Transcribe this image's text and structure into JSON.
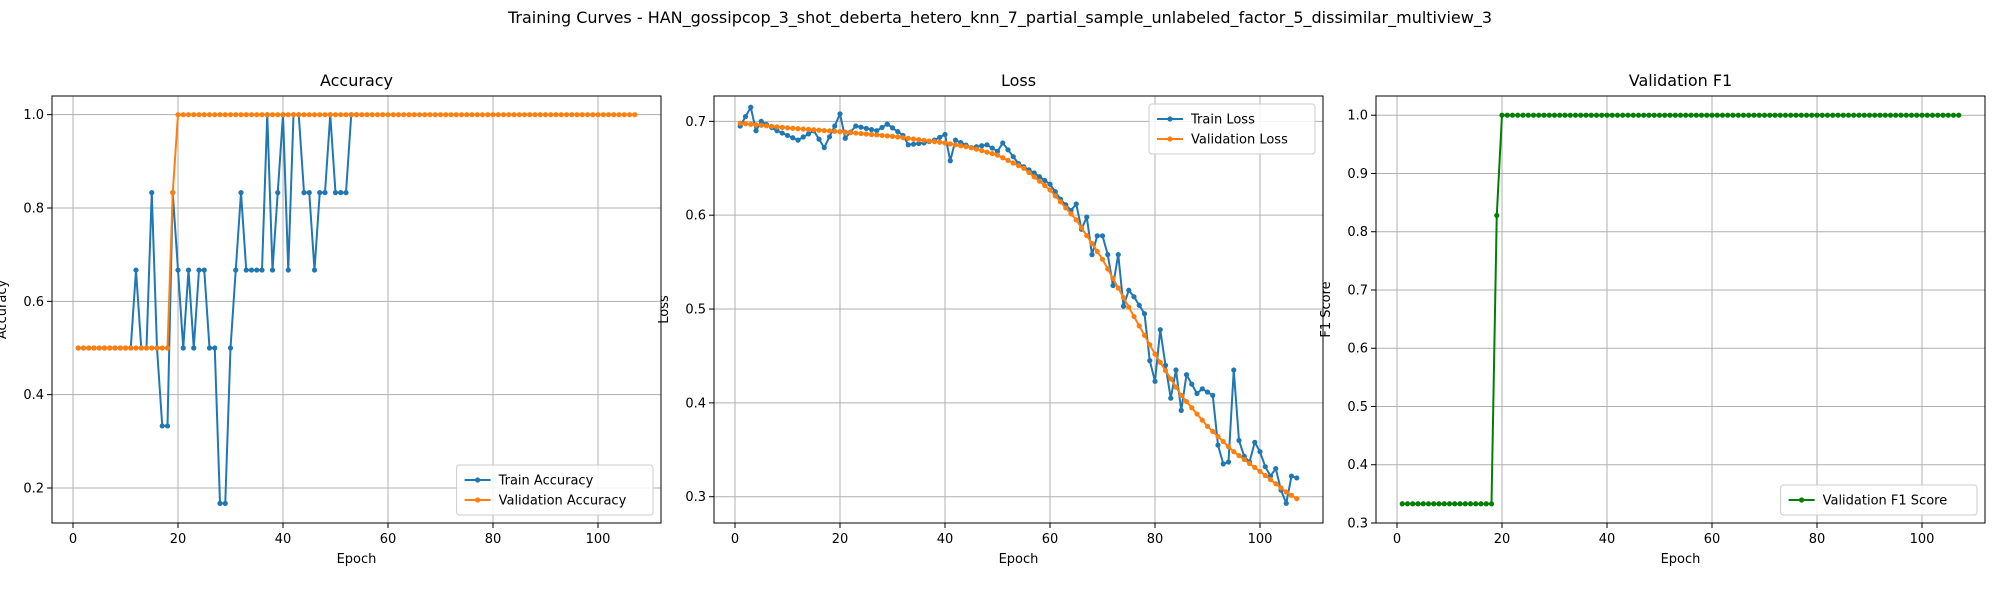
{
  "figure": {
    "title": "Training Curves - HAN_gossipcop_3_shot_deberta_hetero_knn_7_partial_sample_unlabeled_factor_5_dissimilar_multiview_3"
  },
  "colors": {
    "train": "#1f77b4",
    "validation": "#ff7f0e",
    "f1": "#008000",
    "grid": "#b0b0b0"
  },
  "chart_data": [
    {
      "type": "line",
      "title": "Accuracy",
      "xlabel": "Epoch",
      "ylabel": "Accuracy",
      "xlim": [
        -4,
        112
      ],
      "ylim": [
        0.125,
        1.04
      ],
      "xticks": [
        0,
        20,
        40,
        60,
        80,
        100
      ],
      "yticks": [
        0.2,
        0.4,
        0.6,
        0.8,
        1.0
      ],
      "ytick_labels": [
        "0.2",
        "0.4",
        "0.6",
        "0.8",
        "1.0"
      ],
      "grid": true,
      "legend_position": "lower-right",
      "series": [
        {
          "name": "Train Accuracy",
          "color_key": "train",
          "x": [
            1,
            2,
            3,
            4,
            5,
            6,
            7,
            8,
            9,
            10,
            11,
            12,
            13,
            14,
            15,
            16,
            17,
            18,
            19,
            20,
            21,
            22,
            23,
            24,
            25,
            26,
            27,
            28,
            29,
            30,
            31,
            32,
            33,
            34,
            35,
            36,
            37,
            38,
            39,
            40,
            41,
            42,
            43,
            44,
            45,
            46,
            47,
            48,
            49,
            50,
            51,
            52,
            53,
            54
          ],
          "y": [
            0.5,
            0.5,
            0.5,
            0.5,
            0.5,
            0.5,
            0.5,
            0.5,
            0.5,
            0.5,
            0.5,
            0.667,
            0.5,
            0.5,
            0.833,
            0.5,
            0.333,
            0.333,
            0.833,
            0.667,
            0.5,
            0.667,
            0.5,
            0.667,
            0.667,
            0.5,
            0.5,
            0.167,
            0.167,
            0.5,
            0.667,
            0.833,
            0.667,
            0.667,
            0.667,
            0.667,
            1.0,
            0.667,
            0.833,
            1.0,
            0.667,
            1.0,
            1.0,
            0.833,
            0.833,
            0.667,
            0.833,
            0.833,
            1.0,
            0.833,
            0.833,
            0.833,
            1.0,
            1.0
          ]
        },
        {
          "name": "Validation Accuracy",
          "color_key": "validation",
          "x_start": 1,
          "x_end": 107,
          "y_piecewise": [
            {
              "from": 1,
              "to": 17,
              "value": 0.5
            },
            {
              "from": 18,
              "to": 18,
              "value": 0.5
            },
            {
              "from": 19,
              "to": 19,
              "value": 0.833
            },
            {
              "from": 20,
              "to": 107,
              "value": 1.0
            }
          ]
        }
      ]
    },
    {
      "type": "line",
      "title": "Loss",
      "xlabel": "Epoch",
      "ylabel": "Loss",
      "xlim": [
        -4,
        112
      ],
      "ylim": [
        0.272,
        0.727
      ],
      "xticks": [
        0,
        20,
        40,
        60,
        80,
        100
      ],
      "yticks": [
        0.3,
        0.4,
        0.5,
        0.6,
        0.7
      ],
      "ytick_labels": [
        "0.3",
        "0.4",
        "0.5",
        "0.6",
        "0.7"
      ],
      "grid": true,
      "legend_position": "upper-right",
      "series": [
        {
          "name": "Train Loss",
          "color_key": "train",
          "x_start": 1,
          "x_end": 107,
          "y_anchor": [
            [
              1,
              0.695
            ],
            [
              3,
              0.715
            ],
            [
              4,
              0.69
            ],
            [
              5,
              0.7
            ],
            [
              8,
              0.69
            ],
            [
              12,
              0.68
            ],
            [
              15,
              0.69
            ],
            [
              17,
              0.672
            ],
            [
              19,
              0.695
            ],
            [
              20,
              0.708
            ],
            [
              21,
              0.682
            ],
            [
              23,
              0.695
            ],
            [
              27,
              0.69
            ],
            [
              29,
              0.697
            ],
            [
              32,
              0.685
            ],
            [
              33,
              0.675
            ],
            [
              36,
              0.677
            ],
            [
              38,
              0.68
            ],
            [
              40,
              0.686
            ],
            [
              41,
              0.658
            ],
            [
              42,
              0.68
            ],
            [
              45,
              0.672
            ],
            [
              48,
              0.675
            ],
            [
              50,
              0.668
            ],
            [
              51,
              0.677
            ],
            [
              54,
              0.655
            ],
            [
              57,
              0.645
            ],
            [
              60,
              0.633
            ],
            [
              62,
              0.617
            ],
            [
              64,
              0.605
            ],
            [
              65,
              0.612
            ],
            [
              66,
              0.585
            ],
            [
              67,
              0.598
            ],
            [
              68,
              0.558
            ],
            [
              69,
              0.578
            ],
            [
              70,
              0.578
            ],
            [
              71,
              0.558
            ],
            [
              72,
              0.525
            ],
            [
              73,
              0.558
            ],
            [
              74,
              0.503
            ],
            [
              75,
              0.52
            ],
            [
              76,
              0.513
            ],
            [
              78,
              0.495
            ],
            [
              79,
              0.445
            ],
            [
              80,
              0.423
            ],
            [
              81,
              0.478
            ],
            [
              82,
              0.44
            ],
            [
              83,
              0.405
            ],
            [
              84,
              0.435
            ],
            [
              85,
              0.392
            ],
            [
              86,
              0.43
            ],
            [
              88,
              0.41
            ],
            [
              89,
              0.415
            ],
            [
              91,
              0.408
            ],
            [
              92,
              0.355
            ],
            [
              93,
              0.335
            ],
            [
              94,
              0.337
            ],
            [
              95,
              0.435
            ],
            [
              96,
              0.36
            ],
            [
              97,
              0.343
            ],
            [
              98,
              0.337
            ],
            [
              99,
              0.358
            ],
            [
              100,
              0.348
            ],
            [
              101,
              0.332
            ],
            [
              102,
              0.322
            ],
            [
              103,
              0.33
            ],
            [
              104,
              0.307
            ],
            [
              105,
              0.293
            ],
            [
              106,
              0.322
            ],
            [
              107,
              0.32
            ]
          ]
        },
        {
          "name": "Validation Loss",
          "color_key": "validation",
          "x_start": 1,
          "x_end": 107,
          "y_anchor": [
            [
              1,
              0.698
            ],
            [
              10,
              0.693
            ],
            [
              20,
              0.689
            ],
            [
              30,
              0.684
            ],
            [
              40,
              0.677
            ],
            [
              45,
              0.672
            ],
            [
              50,
              0.664
            ],
            [
              55,
              0.65
            ],
            [
              60,
              0.627
            ],
            [
              65,
              0.595
            ],
            [
              70,
              0.553
            ],
            [
              75,
              0.502
            ],
            [
              80,
              0.452
            ],
            [
              85,
              0.408
            ],
            [
              90,
              0.375
            ],
            [
              95,
              0.348
            ],
            [
              100,
              0.327
            ],
            [
              105,
              0.305
            ],
            [
              107,
              0.298
            ]
          ]
        }
      ]
    },
    {
      "type": "line",
      "title": "Validation F1",
      "xlabel": "Epoch",
      "ylabel": "F1 Score",
      "xlim": [
        -4,
        112
      ],
      "ylim": [
        0.3,
        1.033
      ],
      "xticks": [
        0,
        20,
        40,
        60,
        80,
        100
      ],
      "yticks": [
        0.3,
        0.4,
        0.5,
        0.6,
        0.7,
        0.8,
        0.9,
        1.0
      ],
      "ytick_labels": [
        "0.3",
        "0.4",
        "0.5",
        "0.6",
        "0.7",
        "0.8",
        "0.9",
        "1.0"
      ],
      "grid": true,
      "legend_position": "lower-right",
      "series": [
        {
          "name": "Validation F1 Score",
          "color_key": "f1",
          "x_start": 1,
          "x_end": 107,
          "y_piecewise": [
            {
              "from": 1,
              "to": 18,
              "value": 0.333
            },
            {
              "from": 19,
              "to": 19,
              "value": 0.828
            },
            {
              "from": 20,
              "to": 107,
              "value": 1.0
            }
          ]
        }
      ]
    }
  ]
}
